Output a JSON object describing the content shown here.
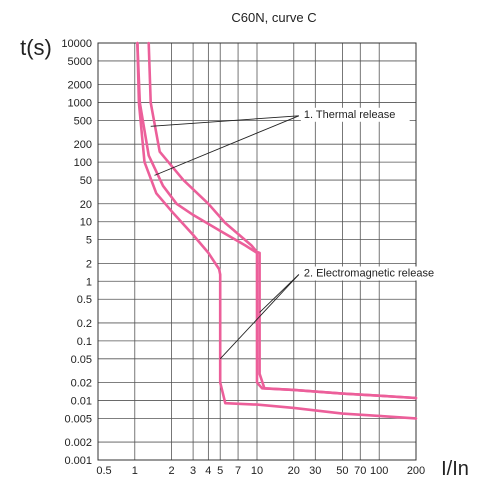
{
  "chart_data": {
    "type": "line",
    "title": "C60N, curve C",
    "ylabel": "t(s)",
    "xlabel": "I/In",
    "xscale": "log",
    "yscale": "log",
    "xlim": [
      0.5,
      200
    ],
    "ylim": [
      0.001,
      10000
    ],
    "grid": true,
    "x_ticks": [
      {
        "value": 0.5,
        "label": "0.5"
      },
      {
        "value": 1,
        "label": "1"
      },
      {
        "value": 2,
        "label": "2"
      },
      {
        "value": 3,
        "label": "3"
      },
      {
        "value": 4,
        "label": "4"
      },
      {
        "value": 5,
        "label": "5"
      },
      {
        "value": 7,
        "label": "7"
      },
      {
        "value": 10,
        "label": "10"
      },
      {
        "value": 20,
        "label": "20"
      },
      {
        "value": 30,
        "label": "30"
      },
      {
        "value": 50,
        "label": "50"
      },
      {
        "value": 70,
        "label": "70"
      },
      {
        "value": 100,
        "label": "100"
      },
      {
        "value": 200,
        "label": "200"
      }
    ],
    "y_ticks": [
      {
        "value": 10000,
        "label": "10000"
      },
      {
        "value": 5000,
        "label": "5000"
      },
      {
        "value": 2000,
        "label": "2000"
      },
      {
        "value": 1000,
        "label": "1000"
      },
      {
        "value": 500,
        "label": "500"
      },
      {
        "value": 200,
        "label": "200"
      },
      {
        "value": 100,
        "label": "100"
      },
      {
        "value": 50,
        "label": "50"
      },
      {
        "value": 20,
        "label": "20"
      },
      {
        "value": 10,
        "label": "10"
      },
      {
        "value": 5,
        "label": "5"
      },
      {
        "value": 2,
        "label": "2"
      },
      {
        "value": 1,
        "label": "1"
      },
      {
        "value": 0.5,
        "label": "0.5"
      },
      {
        "value": 0.2,
        "label": "0.2"
      },
      {
        "value": 0.1,
        "label": "0.1"
      },
      {
        "value": 0.05,
        "label": "0.05"
      },
      {
        "value": 0.02,
        "label": "0.02"
      },
      {
        "value": 0.01,
        "label": "0.01"
      },
      {
        "value": 0.005,
        "label": "0.005"
      },
      {
        "value": 0.002,
        "label": "0.002"
      },
      {
        "value": 0.001,
        "label": "0.001"
      }
    ],
    "series": [
      {
        "points": [
          [
            1.05,
            10000
          ],
          [
            1.1,
            1000
          ],
          [
            1.3,
            130
          ],
          [
            1.7,
            40
          ],
          [
            2.2,
            20
          ],
          [
            3,
            13
          ],
          [
            5,
            7
          ],
          [
            8,
            4
          ],
          [
            10,
            3
          ],
          [
            10,
            0.02
          ],
          [
            11,
            0.016
          ],
          [
            20,
            0.015
          ],
          [
            50,
            0.013
          ],
          [
            100,
            0.012
          ],
          [
            200,
            0.011
          ]
        ]
      },
      {
        "points": [
          [
            1.3,
            10000
          ],
          [
            1.35,
            1000
          ],
          [
            1.6,
            150
          ],
          [
            2.5,
            50
          ],
          [
            4,
            20
          ],
          [
            5.5,
            9.5
          ],
          [
            9,
            4
          ],
          [
            10,
            3.1
          ],
          [
            10.5,
            3
          ],
          [
            10.5,
            0.028
          ],
          [
            11.5,
            0.016
          ],
          [
            20,
            0.015
          ],
          [
            50,
            0.013
          ],
          [
            100,
            0.012
          ],
          [
            200,
            0.011
          ]
        ]
      },
      {
        "points": [
          [
            1.05,
            10000
          ],
          [
            1.08,
            1000
          ],
          [
            1.2,
            100
          ],
          [
            1.5,
            30
          ],
          [
            2,
            15
          ],
          [
            3,
            6
          ],
          [
            4,
            3
          ],
          [
            4.9,
            1.6
          ],
          [
            5,
            1.3
          ],
          [
            5,
            0.02
          ],
          [
            5.5,
            0.009
          ],
          [
            10,
            0.0085
          ],
          [
            20,
            0.0075
          ],
          [
            50,
            0.006
          ],
          [
            100,
            0.0055
          ],
          [
            200,
            0.005
          ]
        ]
      }
    ],
    "series_color": "#ec5f9a",
    "annotations": [
      {
        "label": "1. Thermal release",
        "anchor": [
          22,
          600
        ],
        "targets": [
          [
            1.45,
            60
          ],
          [
            1.35,
            400
          ]
        ]
      },
      {
        "label": "2. Electromagnetic release",
        "anchor": [
          22,
          1.3
        ],
        "targets": [
          [
            5,
            0.05
          ],
          [
            10.5,
            0.3
          ]
        ]
      }
    ]
  }
}
